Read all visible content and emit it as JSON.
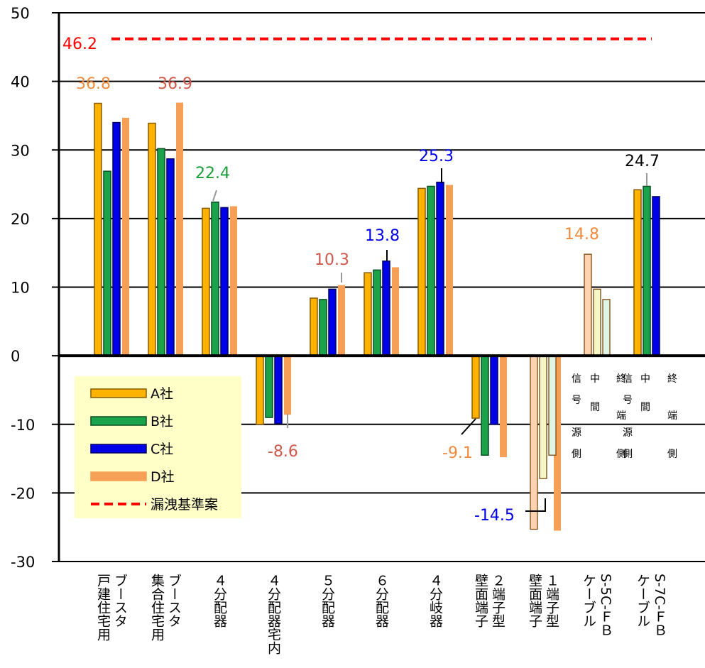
{
  "chart_data": {
    "type": "bar",
    "ylim": [
      -30,
      50
    ],
    "yticks": [
      50,
      40,
      30,
      20,
      10,
      0,
      -10,
      -20,
      -30
    ],
    "grid": true,
    "legend_position": "bottom-left",
    "categories": [
      [
        "戸建住宅用",
        "ブースタ"
      ],
      [
        "集合住宅用",
        "ブースタ"
      ],
      [
        "４分配器"
      ],
      [
        "４分配器宅内"
      ],
      [
        "５分配器"
      ],
      [
        "６分配器"
      ],
      [
        "４分岐器"
      ],
      [
        "壁面端子",
        "２端子型"
      ],
      [
        "壁面端子",
        "１端子型"
      ],
      [
        "ケーブル",
        "S-5C-ＦＢ"
      ],
      [
        "ケーブル",
        "S-7C-ＦＢ"
      ]
    ],
    "series": [
      {
        "name": "A社",
        "color": "#ffb300",
        "values": [
          36.8,
          33.9,
          21.5,
          -10.0,
          8.4,
          12.1,
          24.4,
          -9.1,
          null,
          null,
          24.2
        ]
      },
      {
        "name": "B社",
        "color": "#1aa34a",
        "values": [
          26.9,
          30.2,
          22.4,
          -9.0,
          8.2,
          12.5,
          24.7,
          -14.5,
          null,
          null,
          24.7
        ]
      },
      {
        "name": "C社",
        "color": "#0000e6",
        "values": [
          34.0,
          28.7,
          21.6,
          -9.9,
          9.7,
          13.8,
          25.3,
          -10.0,
          null,
          null,
          23.2
        ]
      },
      {
        "name": "D社",
        "color": "#f6a057",
        "values": [
          34.7,
          36.9,
          21.8,
          -8.6,
          10.3,
          12.9,
          24.9,
          -14.8,
          -25.5,
          null,
          null
        ]
      }
    ],
    "cable_series": {
      "categories_index": [
        8,
        9
      ],
      "labels": [
        "信号源側",
        "中間",
        "終端側"
      ],
      "colors": [
        "#ffd2b0",
        "#f4f8c8",
        "#e0f4e6"
      ],
      "values": [
        [
          -25.3,
          -17.9,
          -14.5
        ],
        [
          14.8,
          9.7,
          8.2
        ]
      ]
    },
    "reference_line": {
      "name": "漏洩基準案",
      "value": 46.2,
      "color": "#ff0000"
    },
    "annotations": [
      {
        "text": "46.2",
        "color": "#ff0000"
      },
      {
        "text": "36.8",
        "color": "#f08a3c"
      },
      {
        "text": "36.9",
        "color": "#d0584a"
      },
      {
        "text": "22.4",
        "color": "#1a9e3a"
      },
      {
        "text": "-8.6",
        "color": "#d0584a"
      },
      {
        "text": "10.3",
        "color": "#d0584a"
      },
      {
        "text": "13.8",
        "color": "#0000e6"
      },
      {
        "text": "25.3",
        "color": "#0000e6"
      },
      {
        "text": "-9.1",
        "color": "#f08a3c"
      },
      {
        "text": "-14.5",
        "color": "#0000e6"
      },
      {
        "text": "14.8",
        "color": "#f08a3c"
      },
      {
        "text": "24.7",
        "color": "#000000"
      }
    ],
    "cable_headers": [
      [
        "信",
        "号",
        "源",
        "側"
      ],
      [
        "中",
        "間"
      ],
      [
        "終",
        "端",
        "側"
      ]
    ]
  },
  "legend": {
    "items": [
      {
        "label": "A社",
        "color": "#ffb300",
        "stroke": "#8a5a00",
        "style": "bar"
      },
      {
        "label": "B社",
        "color": "#1aa34a",
        "stroke": "#0b4f22",
        "style": "bar"
      },
      {
        "label": "C社",
        "color": "#0000e6",
        "stroke": "#000066",
        "style": "bar"
      },
      {
        "label": "D社",
        "color": "#f6a057",
        "stroke": "#f6a057",
        "style": "bar"
      },
      {
        "label": "漏洩基準案",
        "color": "#ff0000",
        "style": "dash"
      }
    ]
  }
}
